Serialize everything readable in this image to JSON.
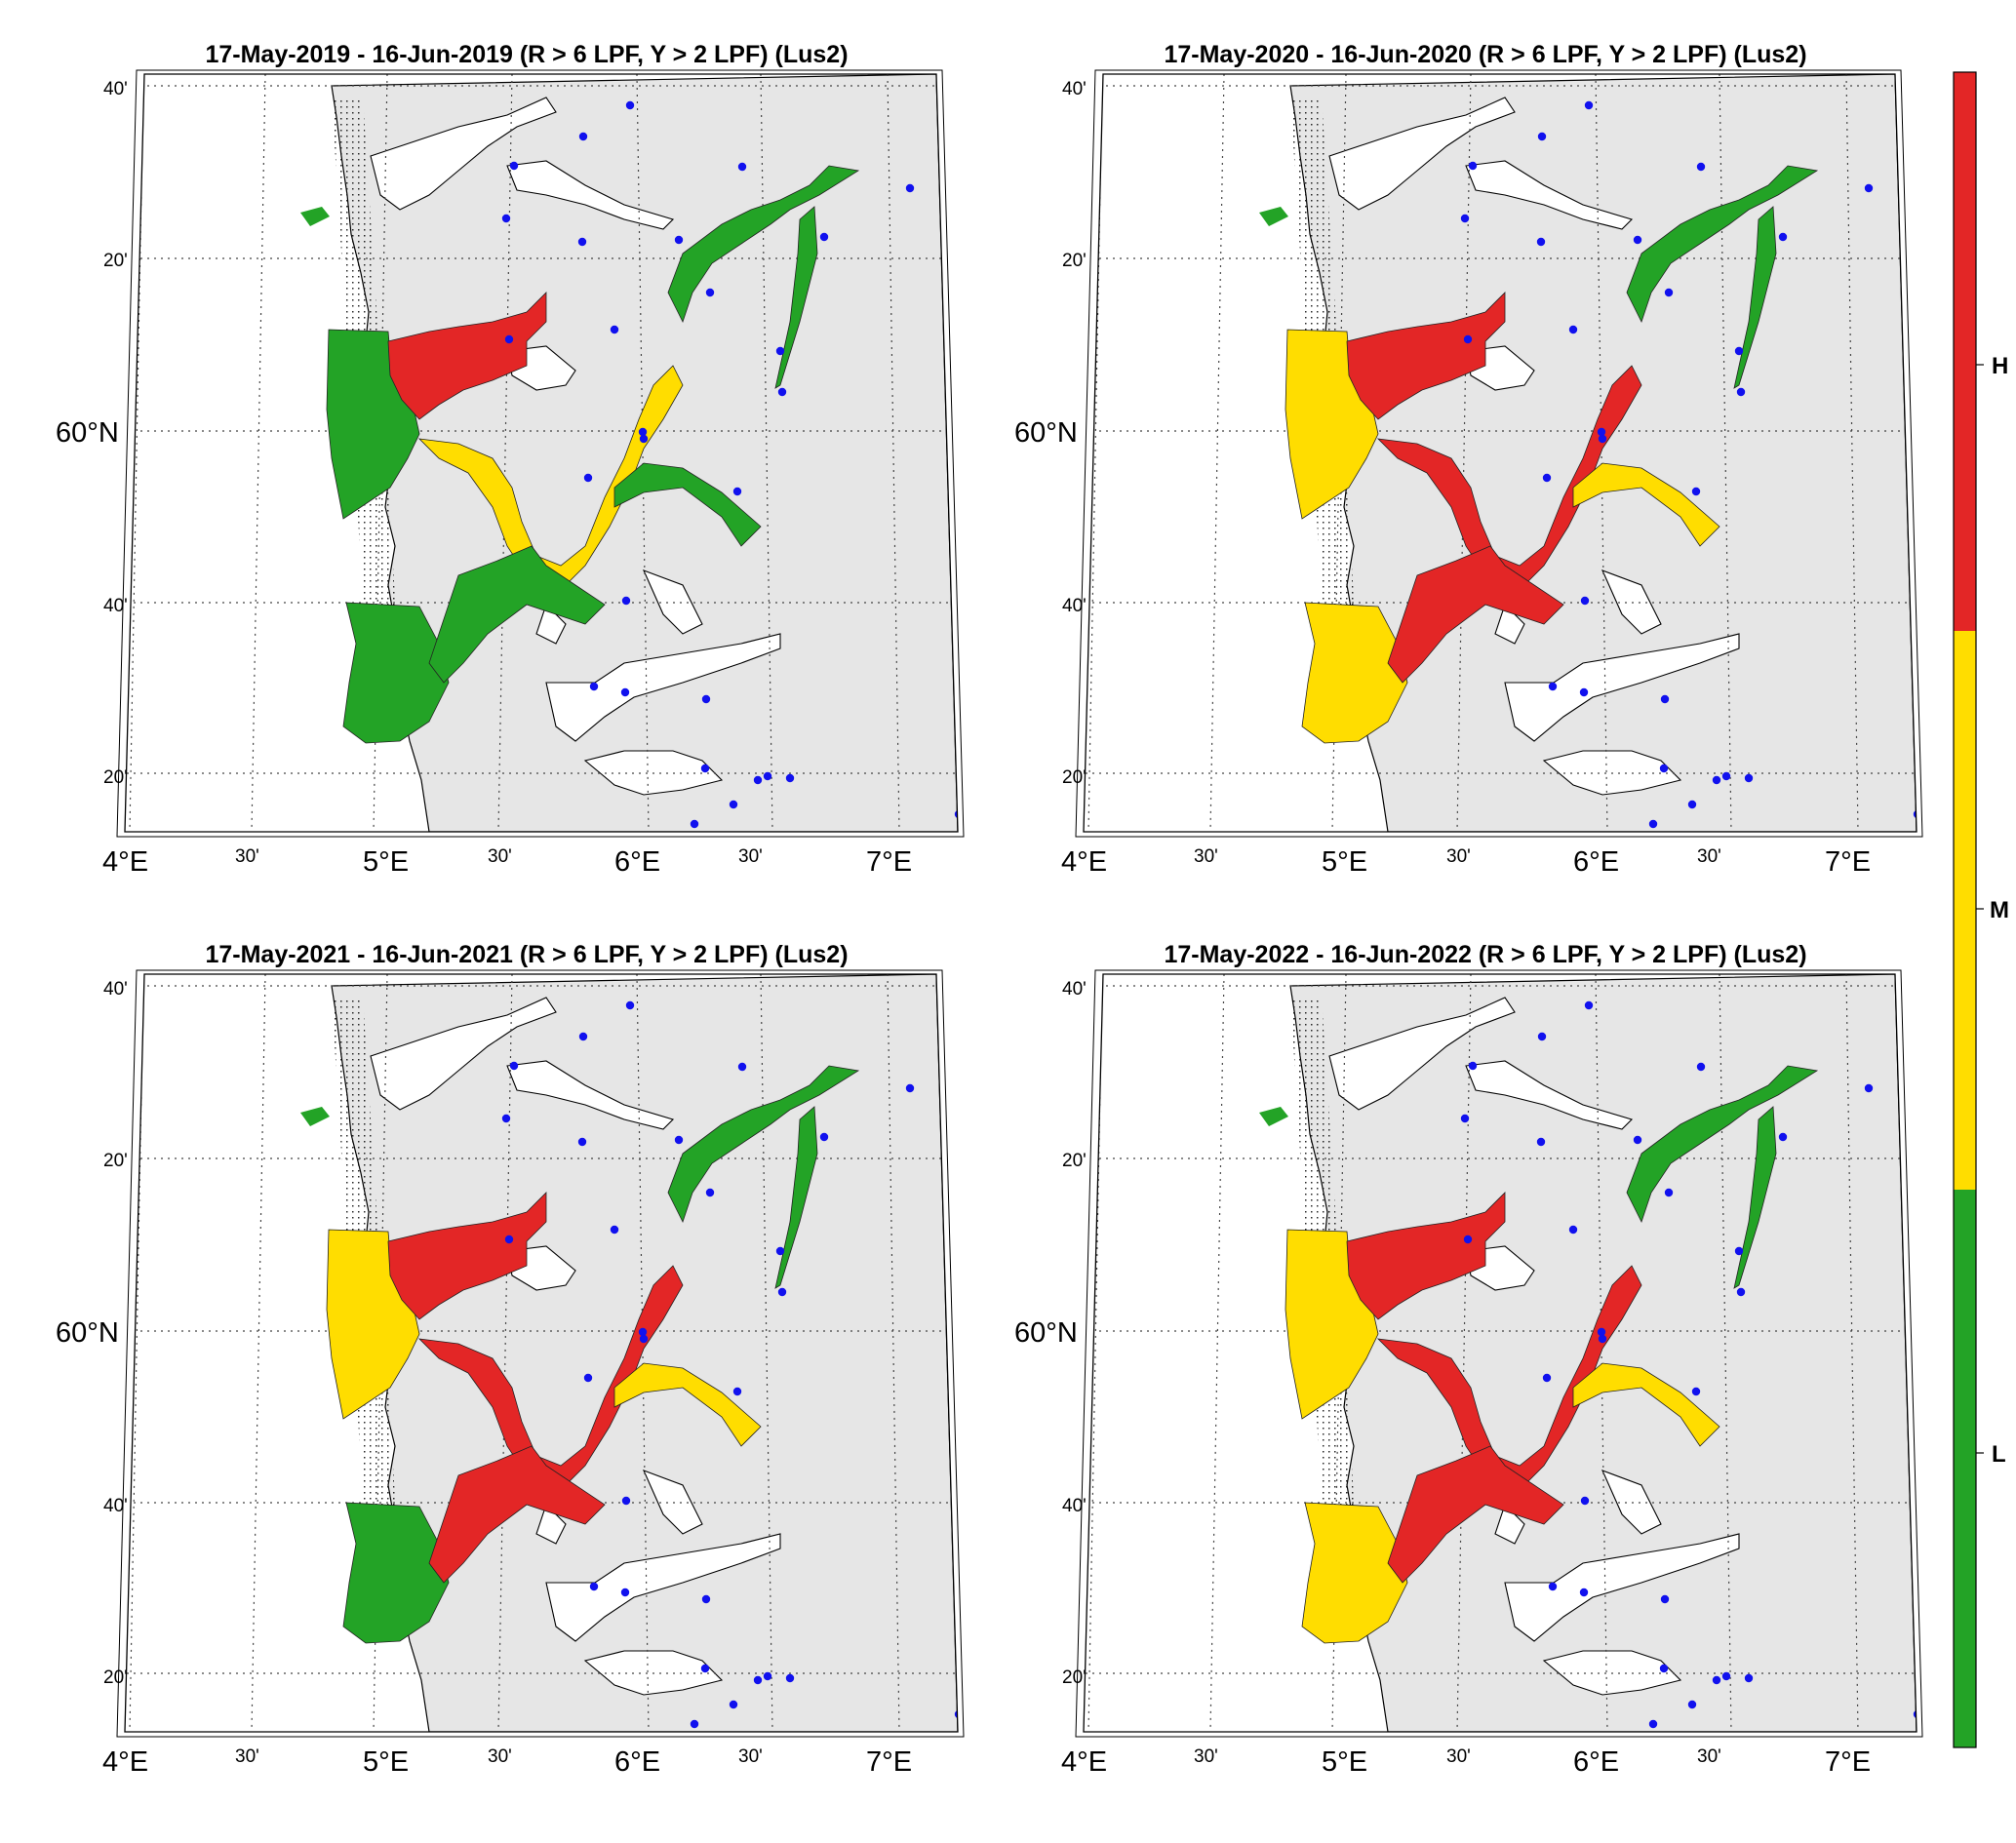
{
  "panels": [
    {
      "title": "17-May-2019  - 16-Jun-2019  (R > 6 LPF, Y > 2 LPF) (Lus2)",
      "zones": {
        "outer_north": "L",
        "outer_south": "L",
        "inner_west": "H",
        "central": "M",
        "south_channel": "L",
        "east_fjord": "L",
        "far_north": "L"
      }
    },
    {
      "title": "17-May-2020  - 16-Jun-2020  (R > 6 LPF, Y > 2 LPF) (Lus2)",
      "zones": {
        "outer_north": "M",
        "outer_south": "M",
        "inner_west": "H",
        "central": "H",
        "south_channel": "H",
        "east_fjord": "M",
        "far_north": "L"
      }
    },
    {
      "title": "17-May-2021  - 16-Jun-2021  (R > 6 LPF, Y > 2 LPF) (Lus2)",
      "zones": {
        "outer_north": "M",
        "outer_south": "L",
        "inner_west": "H",
        "central": "H",
        "south_channel": "H",
        "east_fjord": "M",
        "far_north": "L"
      }
    },
    {
      "title": "17-May-2022  - 16-Jun-2022  (R > 6 LPF, Y > 2 LPF) (Lus2)",
      "zones": {
        "outer_north": "M",
        "outer_south": "M",
        "inner_west": "H",
        "central": "H",
        "south_channel": "H",
        "east_fjord": "M",
        "far_north": "L"
      }
    }
  ],
  "axes": {
    "lat_labels": [
      "40'",
      "20'",
      "60°N",
      "40'",
      "20'"
    ],
    "lon_labels": [
      "4°E",
      "30'",
      "5°E",
      "30'",
      "6°E",
      "30'",
      "7°E"
    ]
  },
  "colorbar": {
    "labels": [
      "H",
      "M",
      "L"
    ],
    "colors": {
      "H": "#e32626",
      "M": "#ffdd00",
      "L": "#23a326"
    }
  },
  "colors": {
    "land": "#e6e6e6",
    "sea": "#ffffff",
    "station": "#1111ee",
    "grid": "#444444"
  }
}
